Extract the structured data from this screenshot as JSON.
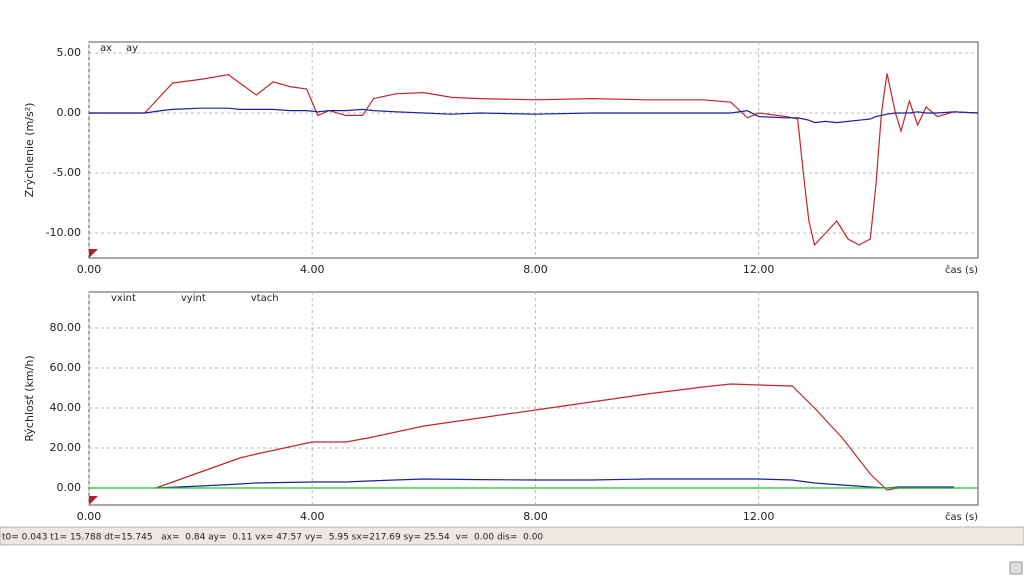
{
  "chart_data": [
    {
      "type": "line",
      "y_label": "Zrýchlenie  (m/s²)",
      "x_label": "čas (s)",
      "grid": true,
      "x": [
        0,
        0.5,
        1.0,
        1.3,
        1.5,
        2.0,
        2.5,
        2.7,
        3.0,
        3.3,
        3.6,
        3.9,
        4.1,
        4.3,
        4.6,
        4.9,
        5.1,
        5.5,
        6.0,
        6.5,
        7.0,
        8.0,
        9.0,
        10.0,
        11.0,
        11.5,
        11.8,
        12.0,
        12.5,
        12.7,
        12.8,
        12.9,
        13.0,
        13.2,
        13.4,
        13.6,
        13.8,
        14.0,
        14.1,
        14.2,
        14.3,
        14.45,
        14.55,
        14.7,
        14.85,
        15.0,
        15.2,
        15.5,
        15.93
      ],
      "series": [
        {
          "name": "ax",
          "color": "#c0282a",
          "values": [
            0,
            0,
            0,
            1.5,
            2.5,
            2.8,
            3.2,
            2.5,
            1.5,
            2.6,
            2.2,
            2.0,
            -0.2,
            0.2,
            -0.2,
            -0.2,
            1.2,
            1.6,
            1.7,
            1.3,
            1.2,
            1.1,
            1.2,
            1.1,
            1.1,
            0.9,
            -0.4,
            0,
            -0.3,
            -0.5,
            -5,
            -9,
            -11,
            -10,
            -9,
            -10.5,
            -11,
            -10.5,
            -6,
            0,
            3.3,
            0,
            -1.5,
            1,
            -1,
            0.5,
            -0.3,
            0.1,
            0
          ]
        },
        {
          "name": "ay",
          "color": "#1f1f9a",
          "values": [
            0,
            0,
            0,
            0.2,
            0.3,
            0.4,
            0.4,
            0.3,
            0.3,
            0.3,
            0.2,
            0.2,
            0.1,
            0.2,
            0.2,
            0.3,
            0.2,
            0.1,
            0,
            -0.1,
            0,
            -0.1,
            0,
            0,
            0,
            0,
            0.2,
            -0.3,
            -0.4,
            -0.4,
            -0.5,
            -0.6,
            -0.8,
            -0.7,
            -0.8,
            -0.7,
            -0.6,
            -0.5,
            -0.3,
            -0.2,
            -0.1,
            0,
            0,
            0,
            0.1,
            0,
            0,
            0.1,
            0
          ]
        }
      ],
      "xlim": [
        0,
        15.93
      ],
      "ylim": [
        -12.08,
        5.92
      ],
      "xticks": [
        {
          "value": 0,
          "label": "0.00"
        },
        {
          "value": 4,
          "label": "4.00"
        },
        {
          "value": 8,
          "label": "8.00"
        },
        {
          "value": 12,
          "label": "12.00"
        }
      ],
      "yticks": [
        {
          "value": -10,
          "label": "-10.00"
        },
        {
          "value": -5,
          "label": "-5.00"
        },
        {
          "value": 0,
          "label": "0.00"
        },
        {
          "value": 5,
          "label": "5.00"
        }
      ]
    },
    {
      "type": "line",
      "y_label": "Rýchlosť (km/h)",
      "x_label": "čas (s)",
      "grid": true,
      "x": [
        0,
        1.2,
        2.0,
        2.7,
        3.0,
        4.0,
        4.6,
        5.0,
        6.0,
        7.0,
        8.0,
        9.0,
        10.0,
        11.0,
        11.5,
        12.0,
        12.6,
        13.0,
        13.5,
        14.0,
        14.3,
        14.5,
        15.5,
        15.93
      ],
      "series": [
        {
          "name": "vxint",
          "color": "#c0282a",
          "values": [
            null,
            0,
            8,
            15,
            17,
            23,
            23,
            25,
            31,
            35,
            39,
            43,
            47,
            50.5,
            52,
            51.5,
            51,
            40,
            25,
            7,
            -1,
            0,
            0,
            null
          ]
        },
        {
          "name": "vyint",
          "color": "#1f1f9a",
          "values": [
            null,
            0,
            1,
            2,
            2.5,
            3,
            3,
            3.5,
            4.5,
            4.2,
            4,
            4,
            4.5,
            4.5,
            4.5,
            4.5,
            4,
            2.5,
            1.5,
            0.5,
            0,
            0.5,
            0.5,
            null
          ]
        },
        {
          "name": "vtach",
          "color": "#22c02a",
          "values": [
            0,
            0,
            0,
            0,
            0,
            0,
            0,
            0,
            0,
            0,
            0,
            0,
            0,
            0,
            0,
            0,
            0,
            0,
            0,
            0,
            0,
            0,
            0,
            0
          ]
        }
      ],
      "xlim": [
        0,
        15.93
      ],
      "ylim": [
        -8.5,
        98
      ],
      "xticks": [
        {
          "value": 0,
          "label": "0.00"
        },
        {
          "value": 4,
          "label": "4.00"
        },
        {
          "value": 8,
          "label": "8.00"
        },
        {
          "value": 12,
          "label": "12.00"
        }
      ],
      "yticks": [
        {
          "value": 0,
          "label": "0.00"
        },
        {
          "value": 20,
          "label": "20.00"
        },
        {
          "value": 40,
          "label": "40.00"
        },
        {
          "value": 60,
          "label": "60.00"
        },
        {
          "value": 80,
          "label": "80.00"
        }
      ]
    }
  ],
  "status_bar": {
    "text": "t0= 0.043 t1= 15.788 dt=15.745   ax=  0.84 ay=  0.11 vx= 47.57 vy=  5.95 sx=217.69 sy= 25.54  v=  0.00 dis=  0.00"
  }
}
